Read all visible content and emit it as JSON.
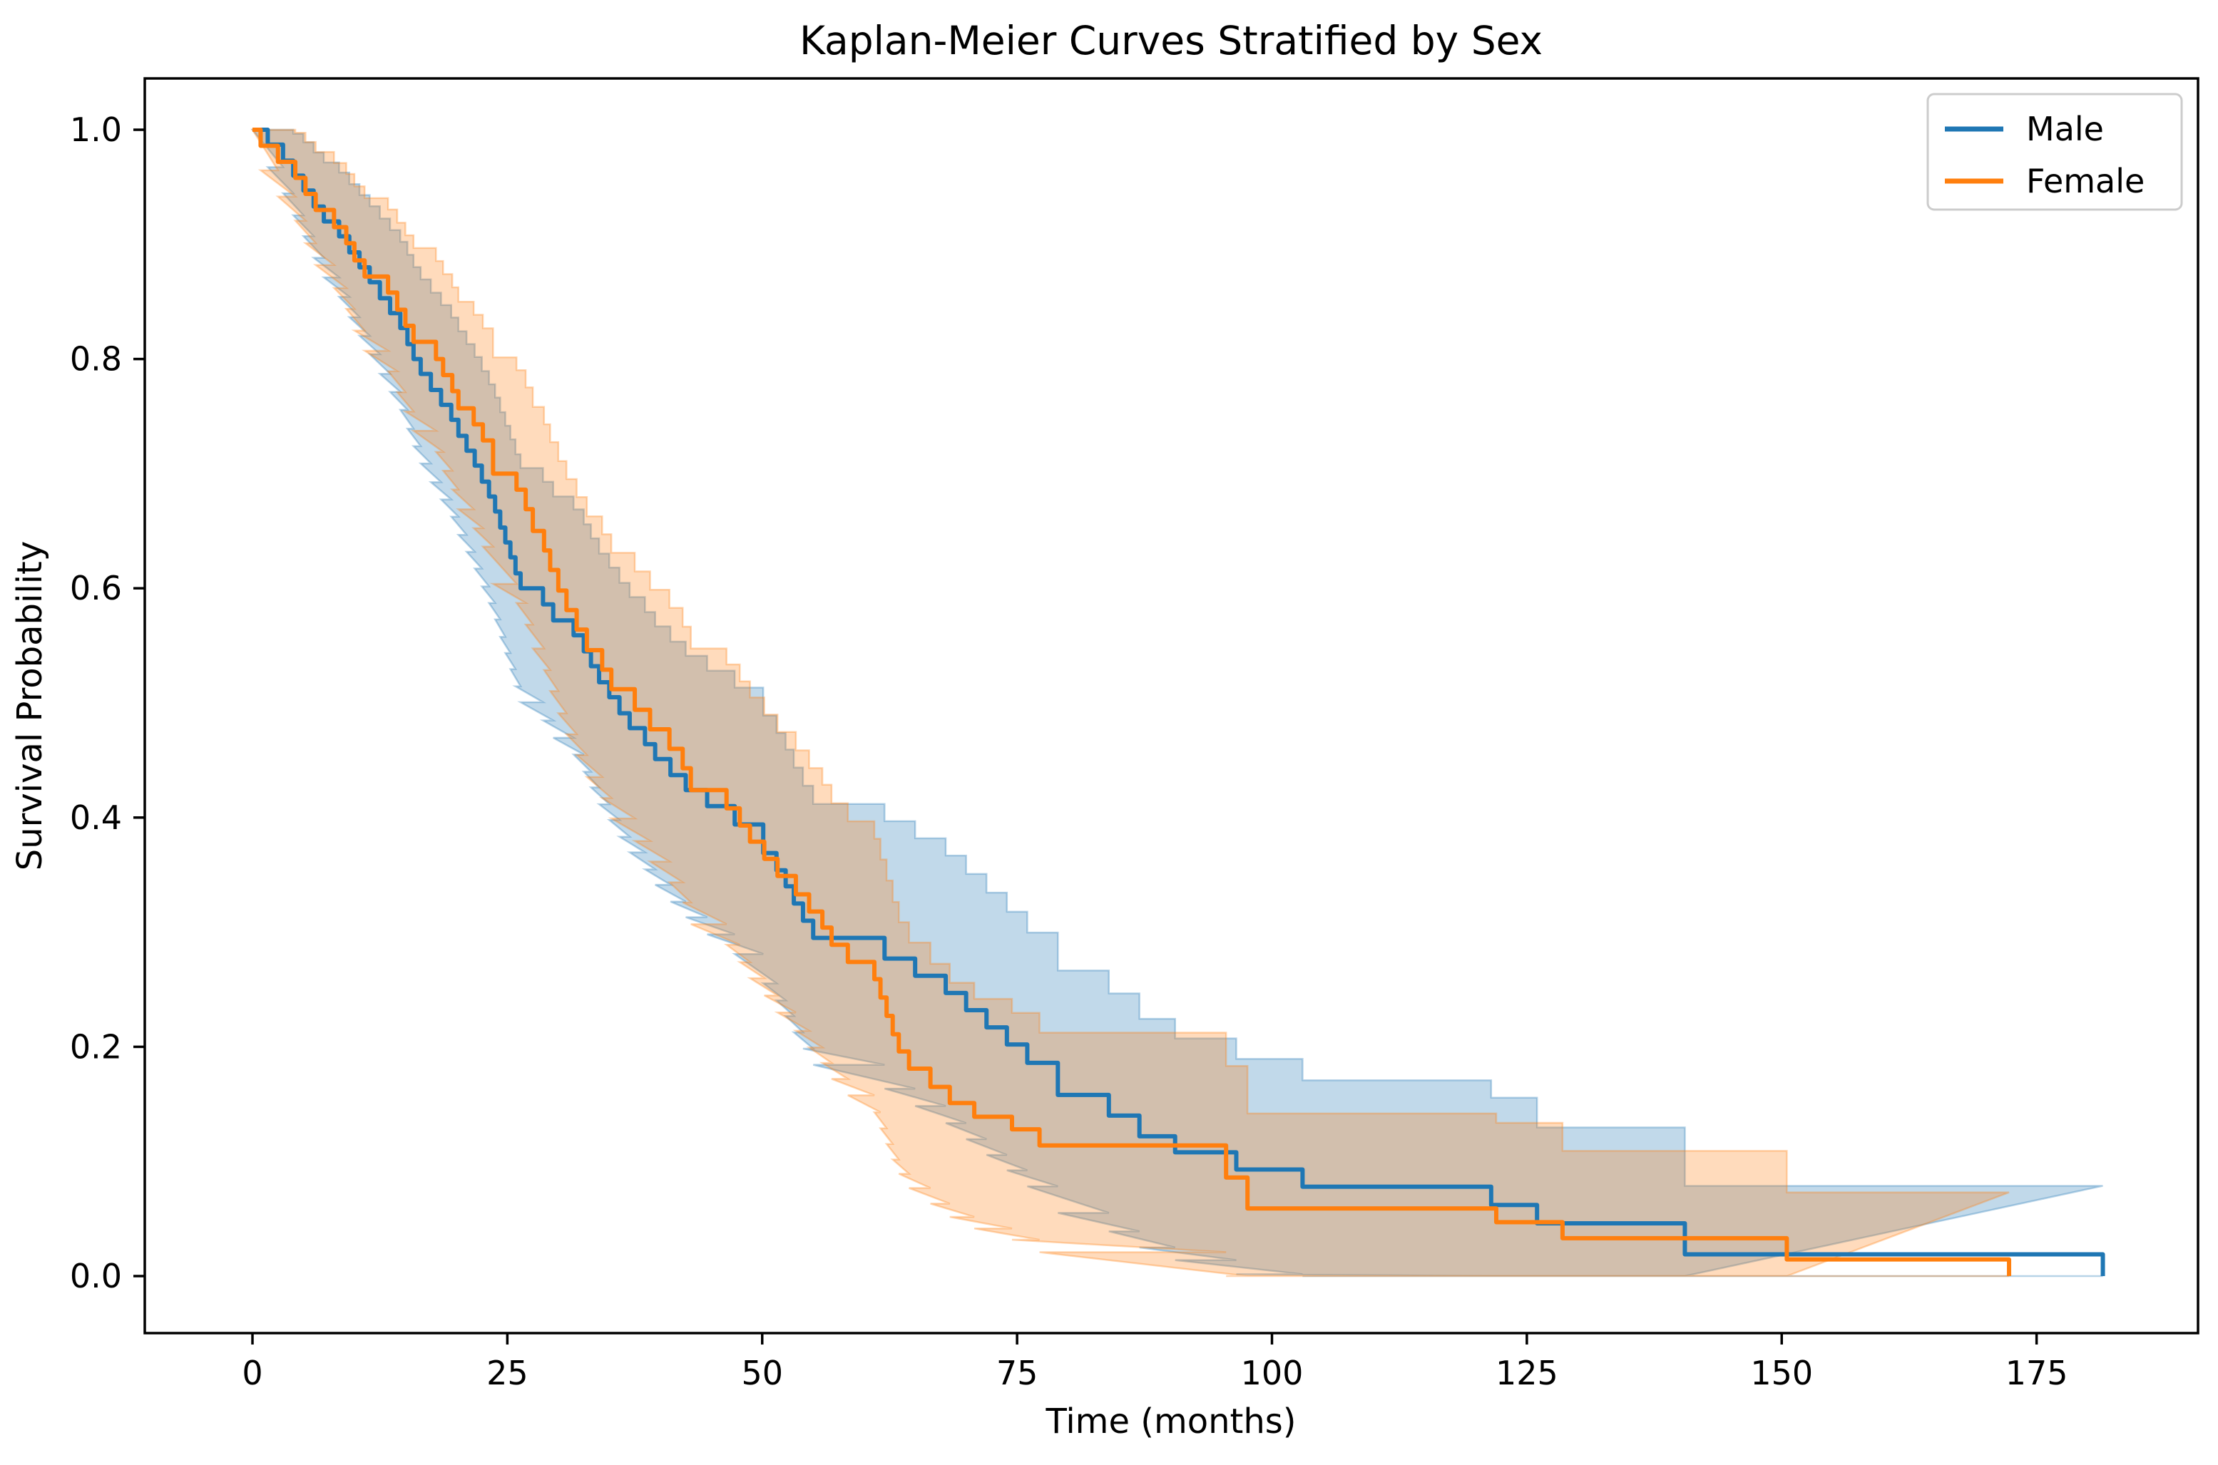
{
  "chart_data": {
    "type": "line",
    "subtype": "kaplan_meier_step",
    "title": "Kaplan-Meier Curves Stratified by Sex",
    "xlabel": "Time (months)",
    "ylabel": "Survival Probability",
    "grid": false,
    "legend_position": "upper right",
    "axes": {
      "xlim": [
        -9.1,
        192.1
      ],
      "ylim": [
        -0.0505,
        1.0505
      ],
      "x_ticks": [
        {
          "v": 0,
          "label": "0"
        },
        {
          "v": 25,
          "label": "25"
        },
        {
          "v": 50,
          "label": "50"
        },
        {
          "v": 75,
          "label": "75"
        },
        {
          "v": 100,
          "label": "100"
        },
        {
          "v": 125,
          "label": "125"
        },
        {
          "v": 150,
          "label": "150"
        },
        {
          "v": 175,
          "label": "175"
        }
      ],
      "y_ticks": [
        {
          "v": 0.0,
          "label": "0.0"
        },
        {
          "v": 0.2,
          "label": "0.2"
        },
        {
          "v": 0.4,
          "label": "0.4"
        },
        {
          "v": 0.6,
          "label": "0.6"
        },
        {
          "v": 0.8,
          "label": "0.8"
        },
        {
          "v": 1.0,
          "label": "1.0"
        }
      ]
    },
    "series": [
      {
        "name": "Male",
        "color": "#1f77b4",
        "band_alpha": 0.28,
        "end_time": 181.5,
        "ci_model": {
          "n0": 105,
          "tau": 80,
          "z": 1.96,
          "lo_mult": 0.9,
          "hi_mult": 0.95
        },
        "steps": [
          [
            0,
            1.0
          ],
          [
            1.5,
            0.987
          ],
          [
            3,
            0.973
          ],
          [
            4,
            0.96
          ],
          [
            5,
            0.947
          ],
          [
            6,
            0.933
          ],
          [
            7,
            0.92
          ],
          [
            8.5,
            0.907
          ],
          [
            9.5,
            0.893
          ],
          [
            10.5,
            0.88
          ],
          [
            11.5,
            0.867
          ],
          [
            12.5,
            0.853
          ],
          [
            13.5,
            0.84
          ],
          [
            14.5,
            0.827
          ],
          [
            15.2,
            0.813
          ],
          [
            15.8,
            0.8
          ],
          [
            16.5,
            0.787
          ],
          [
            17.5,
            0.773
          ],
          [
            18.5,
            0.76
          ],
          [
            19.5,
            0.747
          ],
          [
            20.2,
            0.733
          ],
          [
            21,
            0.72
          ],
          [
            21.8,
            0.707
          ],
          [
            22.5,
            0.693
          ],
          [
            23.2,
            0.68
          ],
          [
            23.8,
            0.667
          ],
          [
            24.3,
            0.653
          ],
          [
            24.8,
            0.64
          ],
          [
            25.3,
            0.627
          ],
          [
            25.8,
            0.613
          ],
          [
            26.3,
            0.6
          ],
          [
            28.5,
            0.586
          ],
          [
            29.5,
            0.572
          ],
          [
            31.5,
            0.559
          ],
          [
            32.5,
            0.545
          ],
          [
            33.2,
            0.532
          ],
          [
            34,
            0.518
          ],
          [
            35,
            0.505
          ],
          [
            36,
            0.491
          ],
          [
            37,
            0.478
          ],
          [
            38.5,
            0.464
          ],
          [
            39.5,
            0.451
          ],
          [
            41,
            0.437
          ],
          [
            42.5,
            0.424
          ],
          [
            44.6,
            0.41
          ],
          [
            47.3,
            0.394
          ],
          [
            50.1,
            0.369
          ],
          [
            51.4,
            0.354
          ],
          [
            52.3,
            0.34
          ],
          [
            53.1,
            0.325
          ],
          [
            54,
            0.31
          ],
          [
            55,
            0.295
          ],
          [
            62,
            0.277
          ],
          [
            65,
            0.262
          ],
          [
            68,
            0.247
          ],
          [
            70,
            0.232
          ],
          [
            72,
            0.217
          ],
          [
            74,
            0.202
          ],
          [
            76,
            0.186
          ],
          [
            79,
            0.158
          ],
          [
            84,
            0.14
          ],
          [
            87,
            0.122
          ],
          [
            90.5,
            0.108
          ],
          [
            96.5,
            0.093
          ],
          [
            103,
            0.078
          ],
          [
            121.5,
            0.062
          ],
          [
            126,
            0.046
          ],
          [
            140.5,
            0.019
          ],
          [
            181.5,
            0
          ]
        ]
      },
      {
        "name": "Female",
        "color": "#ff7f0e",
        "band_alpha": 0.28,
        "end_time": 172.3,
        "ci_model": {
          "n0": 95,
          "tau": 80,
          "z": 1.96,
          "lo_mult": 0.9,
          "hi_mult": 0.95
        },
        "steps": [
          [
            0,
            1.0
          ],
          [
            0.8,
            0.986
          ],
          [
            2.5,
            0.972
          ],
          [
            4.2,
            0.958
          ],
          [
            5.2,
            0.944
          ],
          [
            6.2,
            0.93
          ],
          [
            8,
            0.915
          ],
          [
            9.2,
            0.901
          ],
          [
            10,
            0.886
          ],
          [
            11,
            0.872
          ],
          [
            13.3,
            0.858
          ],
          [
            14.2,
            0.843
          ],
          [
            15,
            0.829
          ],
          [
            15.8,
            0.815
          ],
          [
            18,
            0.8
          ],
          [
            18.7,
            0.786
          ],
          [
            19.6,
            0.772
          ],
          [
            20.2,
            0.757
          ],
          [
            21.7,
            0.743
          ],
          [
            22.6,
            0.729
          ],
          [
            23.6,
            0.7
          ],
          [
            25.9,
            0.686
          ],
          [
            26.8,
            0.669
          ],
          [
            27.5,
            0.65
          ],
          [
            28.6,
            0.633
          ],
          [
            29.2,
            0.616
          ],
          [
            30,
            0.598
          ],
          [
            30.8,
            0.581
          ],
          [
            31.8,
            0.564
          ],
          [
            32.8,
            0.546
          ],
          [
            34.3,
            0.529
          ],
          [
            35.2,
            0.512
          ],
          [
            37.5,
            0.494
          ],
          [
            39,
            0.477
          ],
          [
            40.9,
            0.46
          ],
          [
            42.2,
            0.443
          ],
          [
            43,
            0.424
          ],
          [
            46.5,
            0.408
          ],
          [
            47.8,
            0.393
          ],
          [
            48.8,
            0.379
          ],
          [
            50.2,
            0.364
          ],
          [
            51.5,
            0.349
          ],
          [
            53.3,
            0.333
          ],
          [
            54.6,
            0.318
          ],
          [
            55.9,
            0.304
          ],
          [
            56.8,
            0.289
          ],
          [
            58.4,
            0.274
          ],
          [
            61,
            0.259
          ],
          [
            61.6,
            0.243
          ],
          [
            62.2,
            0.227
          ],
          [
            62.8,
            0.211
          ],
          [
            63.4,
            0.196
          ],
          [
            64.4,
            0.181
          ],
          [
            66.5,
            0.165
          ],
          [
            68.4,
            0.151
          ],
          [
            70.8,
            0.139
          ],
          [
            74.5,
            0.128
          ],
          [
            77.2,
            0.114
          ],
          [
            95.5,
            0.086
          ],
          [
            97.6,
            0.059
          ],
          [
            122,
            0.047
          ],
          [
            128.5,
            0.033
          ],
          [
            150.5,
            0.0145
          ],
          [
            172.3,
            0
          ]
        ]
      }
    ],
    "legend": {
      "items": [
        {
          "label": "Male",
          "color": "#1f77b4"
        },
        {
          "label": "Female",
          "color": "#ff7f0e"
        }
      ]
    }
  }
}
